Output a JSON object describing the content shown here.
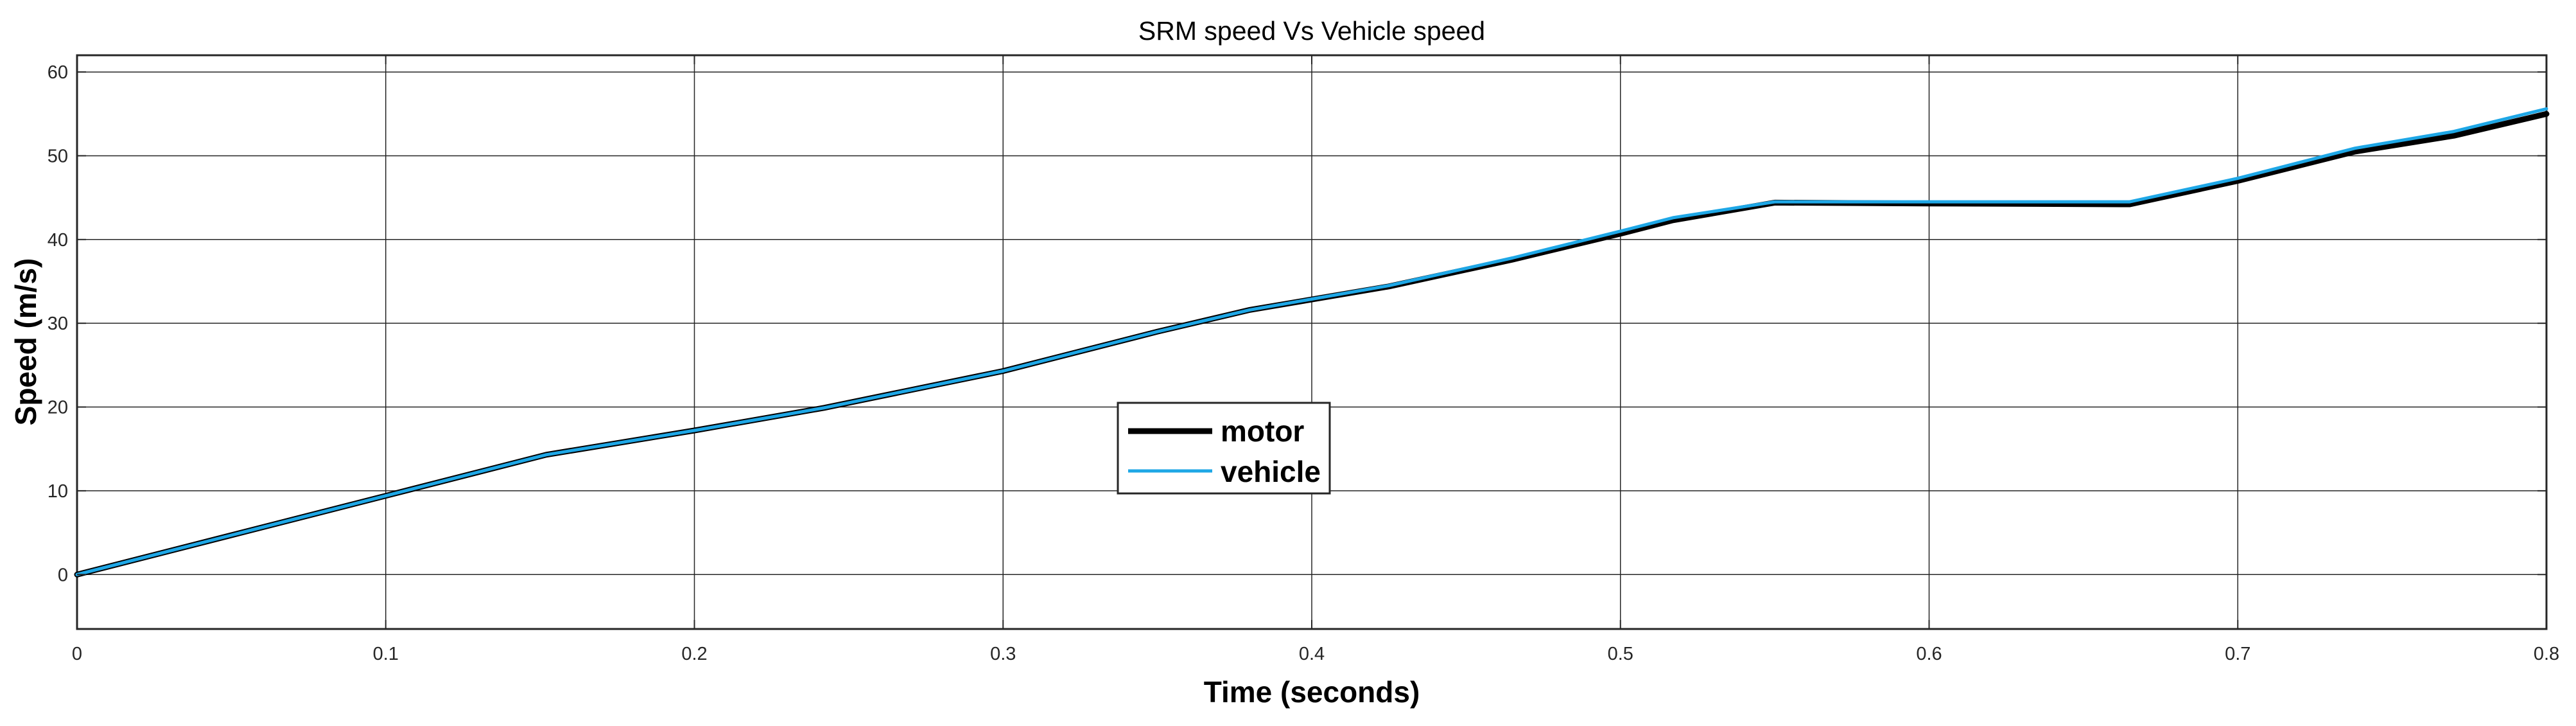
{
  "chart_data": {
    "type": "line",
    "title": "SRM speed Vs Vehicle speed",
    "xlabel": "Time (seconds)",
    "ylabel": "Speed (m/s)",
    "xlim": [
      0,
      0.8
    ],
    "ylim": [
      -6.5,
      62
    ],
    "xticks": [
      0,
      0.1,
      0.2,
      0.3,
      0.4,
      0.5,
      0.6,
      0.7,
      0.8
    ],
    "xtick_labels": [
      "0",
      "0.1",
      "0.2",
      "0.3",
      "0.4",
      "0.5",
      "0.6",
      "0.7",
      "0.8"
    ],
    "yticks": [
      0,
      10,
      20,
      30,
      40,
      50,
      60
    ],
    "ytick_labels": [
      "0",
      "10",
      "20",
      "30",
      "40",
      "50",
      "60"
    ],
    "grid": true,
    "legend_position": "center",
    "series": [
      {
        "name": "motor",
        "color": "#000000",
        "x": [
          0,
          0.05,
          0.1,
          0.152,
          0.2,
          0.242,
          0.3,
          0.35,
          0.38,
          0.425,
          0.465,
          0.5,
          0.517,
          0.55,
          0.6,
          0.665,
          0.7,
          0.738,
          0.77,
          0.8
        ],
        "y": [
          0,
          4.7,
          9.4,
          14.3,
          17.2,
          19.9,
          24.3,
          29.0,
          31.6,
          34.4,
          37.6,
          40.7,
          42.3,
          44.4,
          44.3,
          44.2,
          47.0,
          50.5,
          52.4,
          55.0
        ]
      },
      {
        "name": "vehicle",
        "color": "#1ea7e6",
        "x": [
          0,
          0.05,
          0.1,
          0.152,
          0.2,
          0.242,
          0.3,
          0.35,
          0.38,
          0.425,
          0.465,
          0.5,
          0.517,
          0.55,
          0.6,
          0.665,
          0.7,
          0.738,
          0.77,
          0.8
        ],
        "y": [
          0,
          4.7,
          9.4,
          14.3,
          17.2,
          19.9,
          24.3,
          29.0,
          31.6,
          34.5,
          37.8,
          41.0,
          42.6,
          44.5,
          44.5,
          44.5,
          47.3,
          50.9,
          52.9,
          55.6
        ]
      }
    ]
  }
}
